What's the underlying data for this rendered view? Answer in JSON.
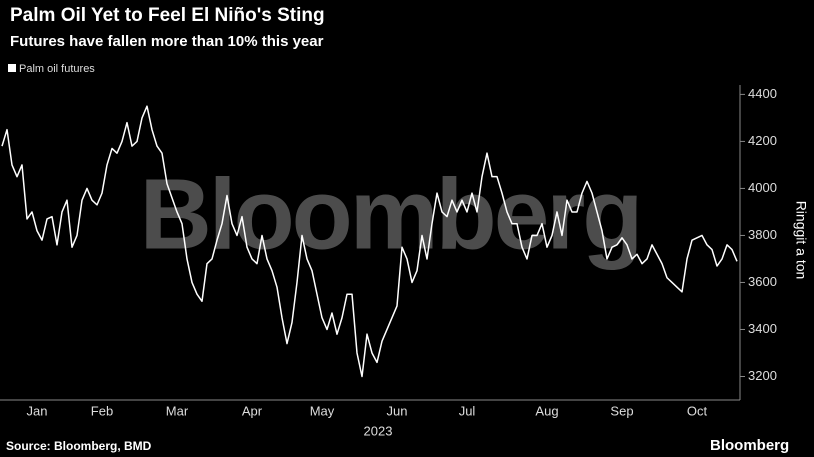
{
  "chart_data": {
    "type": "line",
    "title": "Palm Oil Yet to Feel El Niño's Sting",
    "subtitle": "Futures have fallen more than 10% this year",
    "y_label": "Ringgit a ton",
    "x_label": "2023",
    "source": "Source: Bloomberg, BMD",
    "watermark": "Bloomberg",
    "logo": "Bloomberg",
    "legend": "top-left",
    "categories": [
      null,
      null,
      null,
      null,
      null,
      null,
      null,
      "Jan",
      null,
      null,
      null,
      null,
      null,
      null,
      null,
      null,
      null,
      null,
      null,
      null,
      "Feb",
      null,
      null,
      null,
      null,
      null,
      null,
      null,
      null,
      null,
      null,
      null,
      null,
      null,
      null,
      "Mar",
      null,
      null,
      null,
      null,
      null,
      null,
      null,
      null,
      null,
      null,
      null,
      null,
      null,
      null,
      "Apr",
      null,
      null,
      null,
      null,
      null,
      null,
      null,
      null,
      null,
      null,
      null,
      null,
      null,
      "May",
      null,
      null,
      null,
      null,
      null,
      null,
      null,
      null,
      null,
      null,
      null,
      null,
      null,
      null,
      "Jun",
      null,
      null,
      null,
      null,
      null,
      null,
      null,
      null,
      null,
      null,
      null,
      null,
      null,
      "Jul",
      null,
      null,
      null,
      null,
      null,
      null,
      null,
      null,
      null,
      null,
      null,
      null,
      null,
      null,
      null,
      "Aug",
      null,
      null,
      null,
      null,
      null,
      null,
      null,
      null,
      null,
      null,
      null,
      null,
      null,
      null,
      "Sep",
      null,
      null,
      null,
      null,
      null,
      null,
      null,
      null,
      null,
      null,
      null,
      null,
      null,
      null,
      "Oct",
      null,
      null,
      null,
      null,
      null,
      null,
      null,
      null
    ],
    "series": [
      {
        "name": "Palm oil futures",
        "color": "#ffffff",
        "values": [
          4180,
          4250,
          4100,
          4050,
          4100,
          3870,
          3900,
          3820,
          3780,
          3870,
          3880,
          3760,
          3900,
          3950,
          3750,
          3800,
          3950,
          4000,
          3950,
          3930,
          3980,
          4100,
          4170,
          4150,
          4200,
          4280,
          4180,
          4200,
          4300,
          4350,
          4250,
          4180,
          4150,
          4020,
          3960,
          3900,
          3850,
          3700,
          3600,
          3550,
          3520,
          3680,
          3700,
          3780,
          3850,
          3970,
          3850,
          3800,
          3880,
          3750,
          3700,
          3680,
          3800,
          3700,
          3650,
          3580,
          3450,
          3340,
          3430,
          3600,
          3800,
          3700,
          3650,
          3550,
          3450,
          3400,
          3470,
          3380,
          3450,
          3550,
          3550,
          3300,
          3200,
          3380,
          3300,
          3260,
          3350,
          3400,
          3450,
          3500,
          3750,
          3700,
          3600,
          3650,
          3800,
          3700,
          3850,
          3980,
          3900,
          3880,
          3950,
          3900,
          3950,
          3900,
          3980,
          3900,
          4050,
          4150,
          4050,
          4050,
          3980,
          3900,
          3850,
          3850,
          3750,
          3700,
          3800,
          3800,
          3850,
          3750,
          3800,
          3900,
          3800,
          3950,
          3900,
          3900,
          3980,
          4030,
          3980,
          3900,
          3820,
          3700,
          3750,
          3760,
          3790,
          3760,
          3700,
          3720,
          3680,
          3700,
          3760,
          3720,
          3680,
          3620,
          3600,
          3580,
          3560,
          3700,
          3780,
          3790,
          3800,
          3760,
          3740,
          3670,
          3700,
          3760,
          3740,
          3690
        ]
      }
    ],
    "ylim": [
      3100,
      4440
    ],
    "yticks": [
      3200,
      3400,
      3600,
      3800,
      4000,
      4200,
      4400
    ]
  }
}
